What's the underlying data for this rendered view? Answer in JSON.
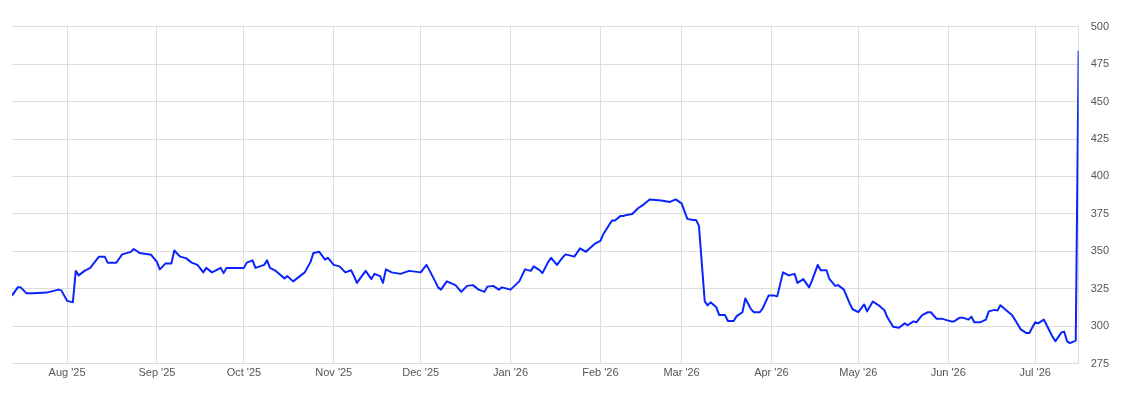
{
  "chart_data": {
    "type": "line",
    "xlim": [
      "2025-07-13",
      "2026-07-16"
    ],
    "xticks": [
      {
        "value": "2025-08-01",
        "label": "Aug '25"
      },
      {
        "value": "2025-09-01",
        "label": "Sep '25"
      },
      {
        "value": "2025-10-01",
        "label": "Oct '25"
      },
      {
        "value": "2025-11-01",
        "label": "Nov '25"
      },
      {
        "value": "2025-12-01",
        "label": "Dec '25"
      },
      {
        "value": "2026-01-01",
        "label": "Jan '26"
      },
      {
        "value": "2026-02-01",
        "label": "Feb '26"
      },
      {
        "value": "2026-03-01",
        "label": "Mar '26"
      },
      {
        "value": "2026-04-01",
        "label": "Apr '26"
      },
      {
        "value": "2026-05-01",
        "label": "May '26"
      },
      {
        "value": "2026-06-01",
        "label": "Jun '26"
      },
      {
        "value": "2026-07-01",
        "label": "Jul '26"
      }
    ],
    "ylim": [
      275,
      500
    ],
    "yticks": [
      275,
      300,
      325,
      350,
      375,
      400,
      425,
      450,
      475,
      500
    ],
    "grid": true,
    "legend": false,
    "marker": "none",
    "line_style": "solid",
    "x": [
      "2025-07-13",
      "2025-07-15",
      "2025-07-16",
      "2025-07-18",
      "2025-07-20",
      "2025-07-25",
      "2025-07-29",
      "2025-07-30",
      "2025-08-01",
      "2025-08-03",
      "2025-08-04",
      "2025-08-05",
      "2025-08-07",
      "2025-08-09",
      "2025-08-12",
      "2025-08-14",
      "2025-08-15",
      "2025-08-18",
      "2025-08-20",
      "2025-08-23",
      "2025-08-24",
      "2025-08-26",
      "2025-08-30",
      "2025-09-01",
      "2025-09-02",
      "2025-09-04",
      "2025-09-06",
      "2025-09-07",
      "2025-09-09",
      "2025-09-11",
      "2025-09-13",
      "2025-09-15",
      "2025-09-17",
      "2025-09-18",
      "2025-09-20",
      "2025-09-23",
      "2025-09-24",
      "2025-09-25",
      "2025-09-29",
      "2025-10-01",
      "2025-10-02",
      "2025-10-04",
      "2025-10-05",
      "2025-10-08",
      "2025-10-09",
      "2025-10-10",
      "2025-10-12",
      "2025-10-15",
      "2025-10-16",
      "2025-10-18",
      "2025-10-22",
      "2025-10-24",
      "2025-10-25",
      "2025-10-27",
      "2025-10-29",
      "2025-10-30",
      "2025-11-01",
      "2025-11-03",
      "2025-11-05",
      "2025-11-07",
      "2025-11-08",
      "2025-11-09",
      "2025-11-12",
      "2025-11-14",
      "2025-11-15",
      "2025-11-17",
      "2025-11-18",
      "2025-11-19",
      "2025-11-21",
      "2025-11-24",
      "2025-11-27",
      "2025-12-01",
      "2025-12-03",
      "2025-12-04",
      "2025-12-06",
      "2025-12-07",
      "2025-12-08",
      "2025-12-10",
      "2025-12-13",
      "2025-12-15",
      "2025-12-17",
      "2025-12-19",
      "2025-12-21",
      "2025-12-23",
      "2025-12-24",
      "2025-12-26",
      "2025-12-28",
      "2025-12-29",
      "2026-01-01",
      "2026-01-04",
      "2026-01-06",
      "2026-01-08",
      "2026-01-09",
      "2026-01-11",
      "2026-01-12",
      "2026-01-14",
      "2026-01-15",
      "2026-01-17",
      "2026-01-19",
      "2026-01-20",
      "2026-01-23",
      "2026-01-25",
      "2026-01-27",
      "2026-01-30",
      "2026-02-01",
      "2026-02-02",
      "2026-02-04",
      "2026-02-05",
      "2026-02-06",
      "2026-02-08",
      "2026-02-09",
      "2026-02-10",
      "2026-02-12",
      "2026-02-14",
      "2026-02-16",
      "2026-02-18",
      "2026-02-22",
      "2026-02-25",
      "2026-02-27",
      "2026-03-01",
      "2026-03-03",
      "2026-03-05",
      "2026-03-06",
      "2026-03-07",
      "2026-03-09",
      "2026-03-10",
      "2026-03-11",
      "2026-03-13",
      "2026-03-14",
      "2026-03-16",
      "2026-03-17",
      "2026-03-19",
      "2026-03-20",
      "2026-03-22",
      "2026-03-23",
      "2026-03-25",
      "2026-03-26",
      "2026-03-28",
      "2026-03-29",
      "2026-03-31",
      "2026-04-02",
      "2026-04-03",
      "2026-04-05",
      "2026-04-07",
      "2026-04-09",
      "2026-04-10",
      "2026-04-12",
      "2026-04-14",
      "2026-04-15",
      "2026-04-17",
      "2026-04-18",
      "2026-04-20",
      "2026-04-21",
      "2026-04-23",
      "2026-04-24",
      "2026-04-26",
      "2026-04-28",
      "2026-04-29",
      "2026-05-01",
      "2026-05-03",
      "2026-05-04",
      "2026-05-06",
      "2026-05-08",
      "2026-05-10",
      "2026-05-11",
      "2026-05-13",
      "2026-05-15",
      "2026-05-17",
      "2026-05-18",
      "2026-05-20",
      "2026-05-21",
      "2026-05-23",
      "2026-05-25",
      "2026-05-26",
      "2026-05-28",
      "2026-05-30",
      "2026-06-02",
      "2026-06-03",
      "2026-06-05",
      "2026-06-06",
      "2026-06-08",
      "2026-06-09",
      "2026-06-10",
      "2026-06-12",
      "2026-06-14",
      "2026-06-15",
      "2026-06-17",
      "2026-06-18",
      "2026-06-19",
      "2026-06-21",
      "2026-06-23",
      "2026-06-24",
      "2026-06-26",
      "2026-06-28",
      "2026-06-29",
      "2026-07-01",
      "2026-07-02",
      "2026-07-04",
      "2026-07-05",
      "2026-07-07",
      "2026-07-08",
      "2026-07-10",
      "2026-07-11",
      "2026-07-12",
      "2026-07-13",
      "2026-07-15",
      "2026-07-16"
    ],
    "series": [
      {
        "color": "#0a24ff",
        "values": [
          320.5,
          326,
          326,
          322,
          322,
          322.5,
          324.5,
          324,
          317,
          316,
          337,
          334,
          337,
          339,
          346.5,
          346.5,
          342.5,
          342.5,
          348,
          349.7,
          351.6,
          349,
          347.7,
          343,
          338,
          342,
          342,
          350.6,
          346.5,
          345.5,
          342.5,
          341,
          336,
          339,
          336,
          339,
          335.5,
          339,
          339,
          339,
          342.5,
          344,
          339,
          341,
          344,
          339,
          337,
          332,
          333.5,
          330,
          336,
          343,
          349,
          349.7,
          344.5,
          345.7,
          341,
          340,
          336,
          337.4,
          333.5,
          329,
          337,
          331.5,
          335,
          333.5,
          329,
          338,
          336,
          335,
          337,
          336,
          341,
          337.5,
          330,
          326,
          324.5,
          330,
          327.5,
          323,
          327,
          327.5,
          324.5,
          323,
          326.5,
          327,
          324.5,
          326,
          324.5,
          330,
          338,
          337,
          340,
          337.5,
          335.5,
          343,
          345.7,
          341,
          346,
          348,
          346.5,
          352,
          349.7,
          355,
          357,
          361.5,
          367.6,
          370.6,
          370.6,
          373.7,
          373.7,
          374.3,
          375,
          378.8,
          381.4,
          384.7,
          384,
          383,
          384.7,
          382,
          371.7,
          371,
          371,
          367,
          316.6,
          314,
          316,
          312.7,
          307.5,
          307.5,
          303.6,
          303.6,
          306.8,
          309.4,
          318.6,
          311.3,
          309.4,
          309.4,
          312,
          320.5,
          320.5,
          320,
          336,
          334,
          335,
          329,
          331.5,
          326,
          330.5,
          341,
          337.4,
          337.4,
          331.6,
          327,
          327.5,
          324.5,
          315.3,
          311.4,
          309.5,
          314.6,
          310,
          316.6,
          314,
          310.7,
          306,
          299.7,
          299,
          302,
          300.7,
          303.3,
          302.7,
          307.5,
          309.4,
          309.4,
          305,
          305,
          303.3,
          303.3,
          305.8,
          305.8,
          304.5,
          306.5,
          302.7,
          302.7,
          304.5,
          310,
          311,
          310.5,
          314,
          310.7,
          307.5,
          304.5,
          298,
          295.5,
          295.5,
          302.7,
          302,
          304.5,
          300.7,
          293,
          290,
          295.8,
          296.5,
          290,
          288.8,
          290.5,
          483.8
        ]
      }
    ]
  }
}
